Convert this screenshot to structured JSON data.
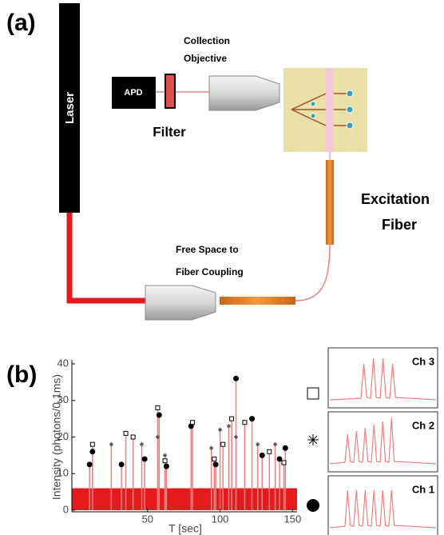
{
  "diagram": {
    "panel_label": "(a)",
    "laser": "Laser",
    "apd": "APD",
    "filter": "Filter",
    "collection_objective": [
      "Collection",
      "Objective"
    ],
    "excitation_fiber": [
      "Excitation",
      "Fiber"
    ],
    "coupling": [
      "Free Space to",
      "Fiber Coupling"
    ]
  },
  "chart_data": {
    "type": "scatter",
    "panel_label": "(b)",
    "x_label": "T [sec]",
    "y_label": "Intensity (photons/0.1ms)",
    "xlim": [
      0,
      152
    ],
    "ylim": [
      0,
      40
    ],
    "xticks": [
      50,
      100,
      150
    ],
    "yticks": [
      0,
      10,
      20,
      30,
      40
    ],
    "noise_level": 6,
    "spike_color": "#f08080",
    "noise_color": "#e41a1c",
    "series": [
      {
        "name": "Ch 1",
        "marker": "circle",
        "color": "#000000",
        "x": [
          10,
          12,
          32,
          48,
          58,
          63,
          80,
          97,
          111,
          122,
          129,
          141,
          145
        ],
        "values": [
          12.5,
          16,
          12.5,
          14,
          26,
          12,
          23,
          12.5,
          36,
          25,
          15,
          14,
          17
        ]
      },
      {
        "name": "Ch 2",
        "marker": "star",
        "color": "#555555",
        "x": [
          25,
          46,
          57,
          62,
          94,
          100,
          106,
          111,
          126,
          138
        ],
        "values": [
          18,
          18,
          20,
          15,
          17,
          22,
          23,
          20,
          18,
          18
        ]
      },
      {
        "name": "Ch 3",
        "marker": "square",
        "color": "#000000",
        "x": [
          12,
          35,
          40,
          57,
          62,
          81,
          96,
          102,
          108,
          117,
          134,
          144
        ],
        "values": [
          18,
          21,
          20,
          28,
          13.5,
          24,
          14,
          18,
          25,
          24,
          16,
          13
        ]
      }
    ]
  }
}
